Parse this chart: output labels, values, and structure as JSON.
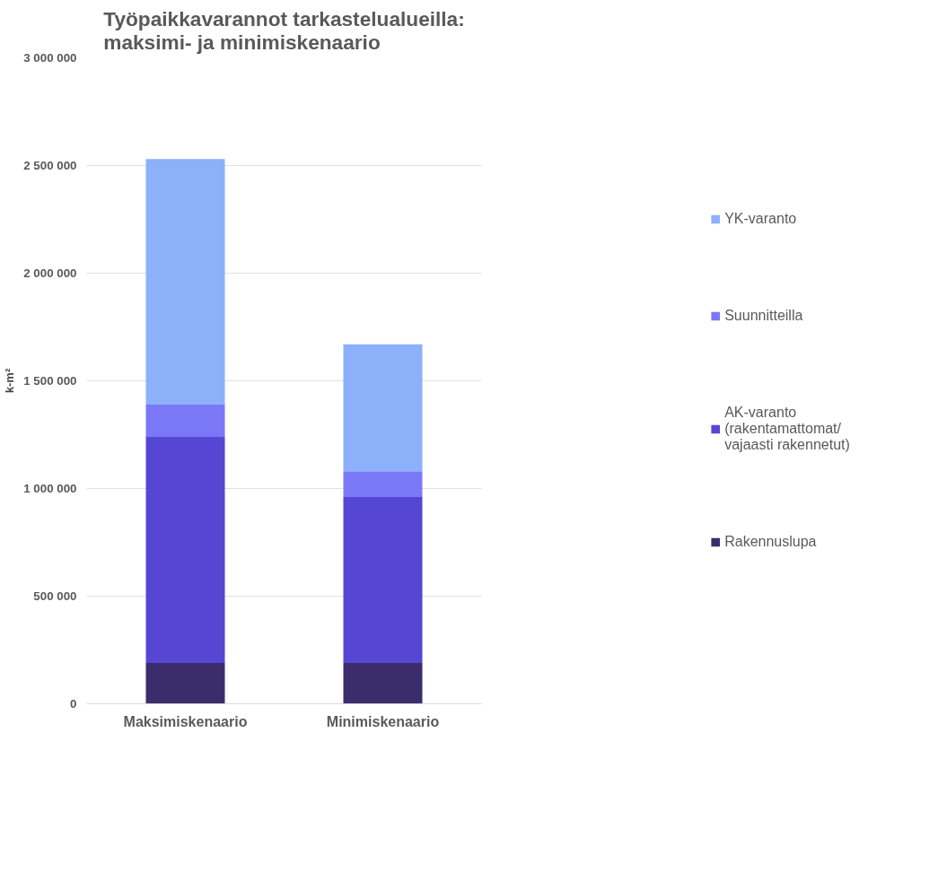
{
  "chart_data": {
    "type": "bar",
    "title": "Työpaikkavarannot tarkastelualueilla:\nmaksimi- ja minimiskenaario",
    "ylabel": "k-m²",
    "categories": [
      "Maksimiskenaario",
      "Minimiskenaario"
    ],
    "stacked": true,
    "series": [
      {
        "name": "Rakennuslupa",
        "color": "#3b2d6b",
        "values": [
          190000,
          190000
        ]
      },
      {
        "name": "AK-varanto (rakentamattomat/ vajaasti rakennetut)",
        "color": "#5646d4",
        "values": [
          1050000,
          770000
        ]
      },
      {
        "name": "Suunnitteilla",
        "color": "#7b78f8",
        "values": [
          150000,
          120000
        ]
      },
      {
        "name": "YK-varanto",
        "color": "#8cb0fa",
        "values": [
          1140000,
          590000
        ]
      }
    ],
    "ylim": [
      0,
      3000000
    ],
    "yticks": [
      {
        "value": 0,
        "label": "0"
      },
      {
        "value": 500000,
        "label": "500 000"
      },
      {
        "value": 1000000,
        "label": "1 000 000"
      },
      {
        "value": 1500000,
        "label": "1 500 000"
      },
      {
        "value": 2000000,
        "label": "2 000 000"
      },
      {
        "value": 2500000,
        "label": "2 500 000"
      },
      {
        "value": 3000000,
        "label": "3 000 000"
      }
    ],
    "grid": "y",
    "legend": "right"
  }
}
